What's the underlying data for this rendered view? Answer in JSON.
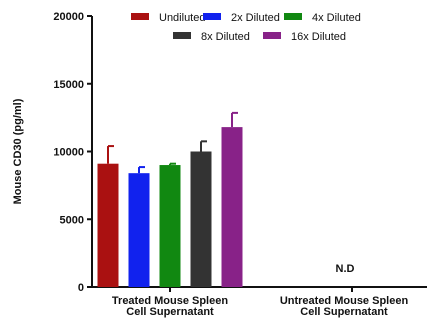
{
  "chart_data": {
    "type": "bar",
    "ylabel": "Mouse CD30 (pg/ml)",
    "xlabel": "",
    "ylim": [
      0,
      20000
    ],
    "yticks": [
      "0",
      "5000",
      "10000",
      "15000",
      "20000"
    ],
    "categories": [
      [
        "Treated Mouse Spleen",
        "Cell Supernatant"
      ],
      [
        "Untreated Mouse Spleen",
        "Cell Supernatant"
      ]
    ],
    "series": [
      {
        "name": "Undiluted",
        "color": "#aa1111",
        "values": [
          9100,
          null
        ],
        "errors": [
          1300,
          null
        ]
      },
      {
        "name": "2x Diluted",
        "color": "#1122ee",
        "values": [
          8400,
          null
        ],
        "errors": [
          450,
          null
        ]
      },
      {
        "name": "4x Diluted",
        "color": "#118811",
        "values": [
          9000,
          null
        ],
        "errors": [
          100,
          null
        ]
      },
      {
        "name": "8x Diluted",
        "color": "#333333",
        "values": [
          10000,
          null
        ],
        "errors": [
          750,
          null
        ]
      },
      {
        "name": "16x Diluted",
        "color": "#882288",
        "values": [
          11800,
          null
        ],
        "errors": [
          1050,
          null
        ]
      }
    ],
    "annotations": [
      {
        "category_index": 1,
        "text": "N.D"
      }
    ],
    "legend": "top",
    "grid": false
  }
}
